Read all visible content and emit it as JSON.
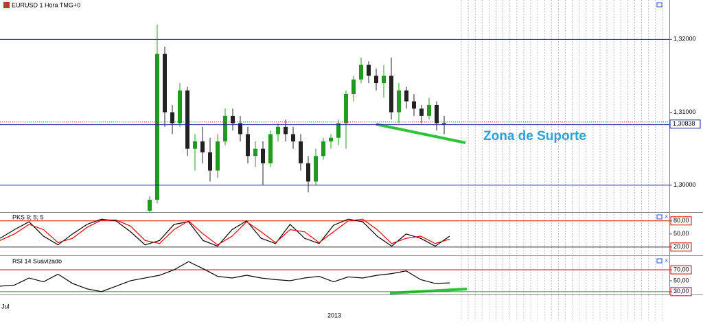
{
  "chart_data": [
    {
      "type": "candlestick",
      "title": "EURUSD 1 Hora TMG+0",
      "open": [
        1.2965,
        1.298,
        1.318,
        1.31,
        1.3085,
        1.313,
        1.305,
        1.306,
        1.3045,
        1.302,
        1.306,
        1.3095,
        1.3085,
        1.307,
        1.304,
        1.305,
        1.303,
        1.307,
        1.308,
        1.307,
        1.306,
        1.303,
        1.3005,
        1.304,
        1.306,
        1.3065,
        1.3085,
        1.3125,
        1.3145,
        1.3165,
        1.315,
        1.314,
        1.315,
        1.31,
        1.313,
        1.3115,
        1.3105,
        1.3095,
        1.311,
        1.3085
      ],
      "high": [
        1.2985,
        1.322,
        1.319,
        1.311,
        1.314,
        1.3135,
        1.307,
        1.308,
        1.3065,
        1.307,
        1.3105,
        1.3105,
        1.3095,
        1.308,
        1.306,
        1.306,
        1.3075,
        1.3085,
        1.309,
        1.308,
        1.307,
        1.304,
        1.305,
        1.3065,
        1.307,
        1.309,
        1.313,
        1.315,
        1.3175,
        1.317,
        1.316,
        1.3165,
        1.3175,
        1.314,
        1.3135,
        1.3125,
        1.311,
        1.312,
        1.3115,
        1.3095
      ],
      "low": [
        1.2962,
        1.2975,
        1.308,
        1.307,
        1.308,
        1.304,
        1.302,
        1.303,
        1.3005,
        1.301,
        1.3055,
        1.3075,
        1.306,
        1.303,
        1.3025,
        1.3,
        1.3025,
        1.306,
        1.306,
        1.305,
        1.302,
        1.299,
        1.3,
        1.3035,
        1.305,
        1.3055,
        1.305,
        1.3115,
        1.314,
        1.314,
        1.313,
        1.312,
        1.309,
        1.3085,
        1.3105,
        1.3095,
        1.3085,
        1.309,
        1.3075,
        1.307
      ],
      "close": [
        1.298,
        1.318,
        1.31,
        1.3085,
        1.313,
        1.305,
        1.306,
        1.3045,
        1.302,
        1.306,
        1.3095,
        1.3085,
        1.307,
        1.304,
        1.305,
        1.303,
        1.307,
        1.308,
        1.307,
        1.306,
        1.303,
        1.3005,
        1.304,
        1.306,
        1.3065,
        1.3085,
        1.3125,
        1.3145,
        1.3165,
        1.315,
        1.314,
        1.315,
        1.31,
        1.313,
        1.3115,
        1.3105,
        1.3095,
        1.311,
        1.3085,
        1.30838
      ],
      "up_color": "#1f9a1f",
      "down_color": "#222222",
      "ylim": [
        1.2964,
        1.3254
      ],
      "yticks": [
        {
          "value": 1.3,
          "label": "1,30000"
        },
        {
          "value": 1.31,
          "label": "1,31000"
        },
        {
          "value": 1.32,
          "label": "1,32000"
        }
      ],
      "hlines": [
        1.32,
        1.3083,
        1.3
      ],
      "hline_color": "#1a1aa8",
      "last_price_label": "1,30838",
      "annotation": "Zona de Suporte"
    },
    {
      "type": "line",
      "title": "PKS 9; 5; 5",
      "series": [
        {
          "color": "#000000",
          "values": [
            40,
            60,
            78,
            45,
            25,
            50,
            72,
            84,
            80,
            55,
            25,
            35,
            72,
            78,
            35,
            22,
            60,
            80,
            40,
            28,
            72,
            40,
            28,
            70,
            84,
            78,
            45,
            22,
            50,
            40,
            22,
            45
          ]
        },
        {
          "color": "#e00000",
          "values": [
            35,
            50,
            72,
            60,
            30,
            40,
            65,
            82,
            82,
            68,
            35,
            28,
            60,
            80,
            50,
            25,
            45,
            78,
            55,
            30,
            60,
            55,
            30,
            55,
            80,
            84,
            60,
            28,
            40,
            45,
            28,
            38
          ]
        }
      ],
      "ylim": [
        4,
        97
      ],
      "yticks": [
        {
          "value": 20,
          "label": "20,00"
        },
        {
          "value": 50,
          "label": "50,00"
        },
        {
          "value": 80,
          "label": "80,00"
        }
      ]
    },
    {
      "type": "line",
      "title": "RSI 14 Suavizado",
      "series": [
        {
          "color": "#000000",
          "values": [
            40,
            42,
            55,
            48,
            62,
            45,
            35,
            30,
            40,
            50,
            55,
            60,
            70,
            85,
            72,
            58,
            55,
            60,
            55,
            52,
            50,
            55,
            58,
            48,
            57,
            55,
            60,
            63,
            68,
            52,
            45,
            46
          ]
        }
      ],
      "ylim": [
        26,
        94
      ],
      "yticks": [
        {
          "value": 30,
          "label": "30,00"
        },
        {
          "value": 50,
          "label": "50,00"
        },
        {
          "value": 70,
          "label": "70,00"
        }
      ]
    }
  ],
  "time_axis": {
    "labels": [
      "Jul",
      "2013"
    ]
  }
}
